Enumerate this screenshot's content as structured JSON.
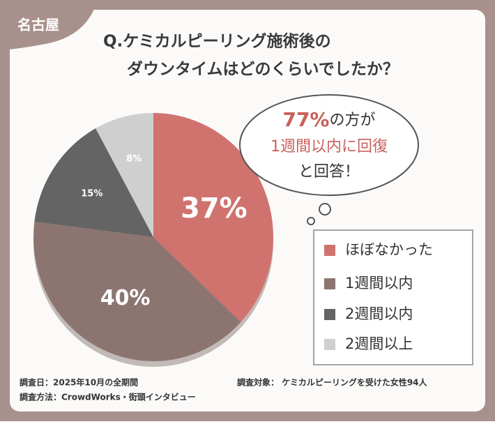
{
  "badge": "名古屋",
  "chart_data": {
    "type": "pie",
    "title": [
      "Q.ケミカルピーリング施術後の",
      "ダウンタイムはどのくらいでしたか？"
    ],
    "categories": [
      "ほぼなかった",
      "1週間以内",
      "2週間以内",
      "2週間以上"
    ],
    "values": [
      37,
      40,
      15,
      8
    ],
    "value_labels": [
      "37%",
      "40%",
      "15%",
      "8%"
    ],
    "colors": [
      "#d0736f",
      "#8c7571",
      "#646464",
      "#cfcfcf"
    ],
    "annotation": {
      "highlight": "77%",
      "line1_rest": "の方が",
      "line2": "1週間以内に回復",
      "line3": "と回答！"
    }
  },
  "footer": {
    "date": "調査日：2025年10月の全期間",
    "method": "調査方法：CrowdWorks・街頭インタビュー",
    "target": "調査対象： ケミカルピーリングを受けた女性94人"
  }
}
